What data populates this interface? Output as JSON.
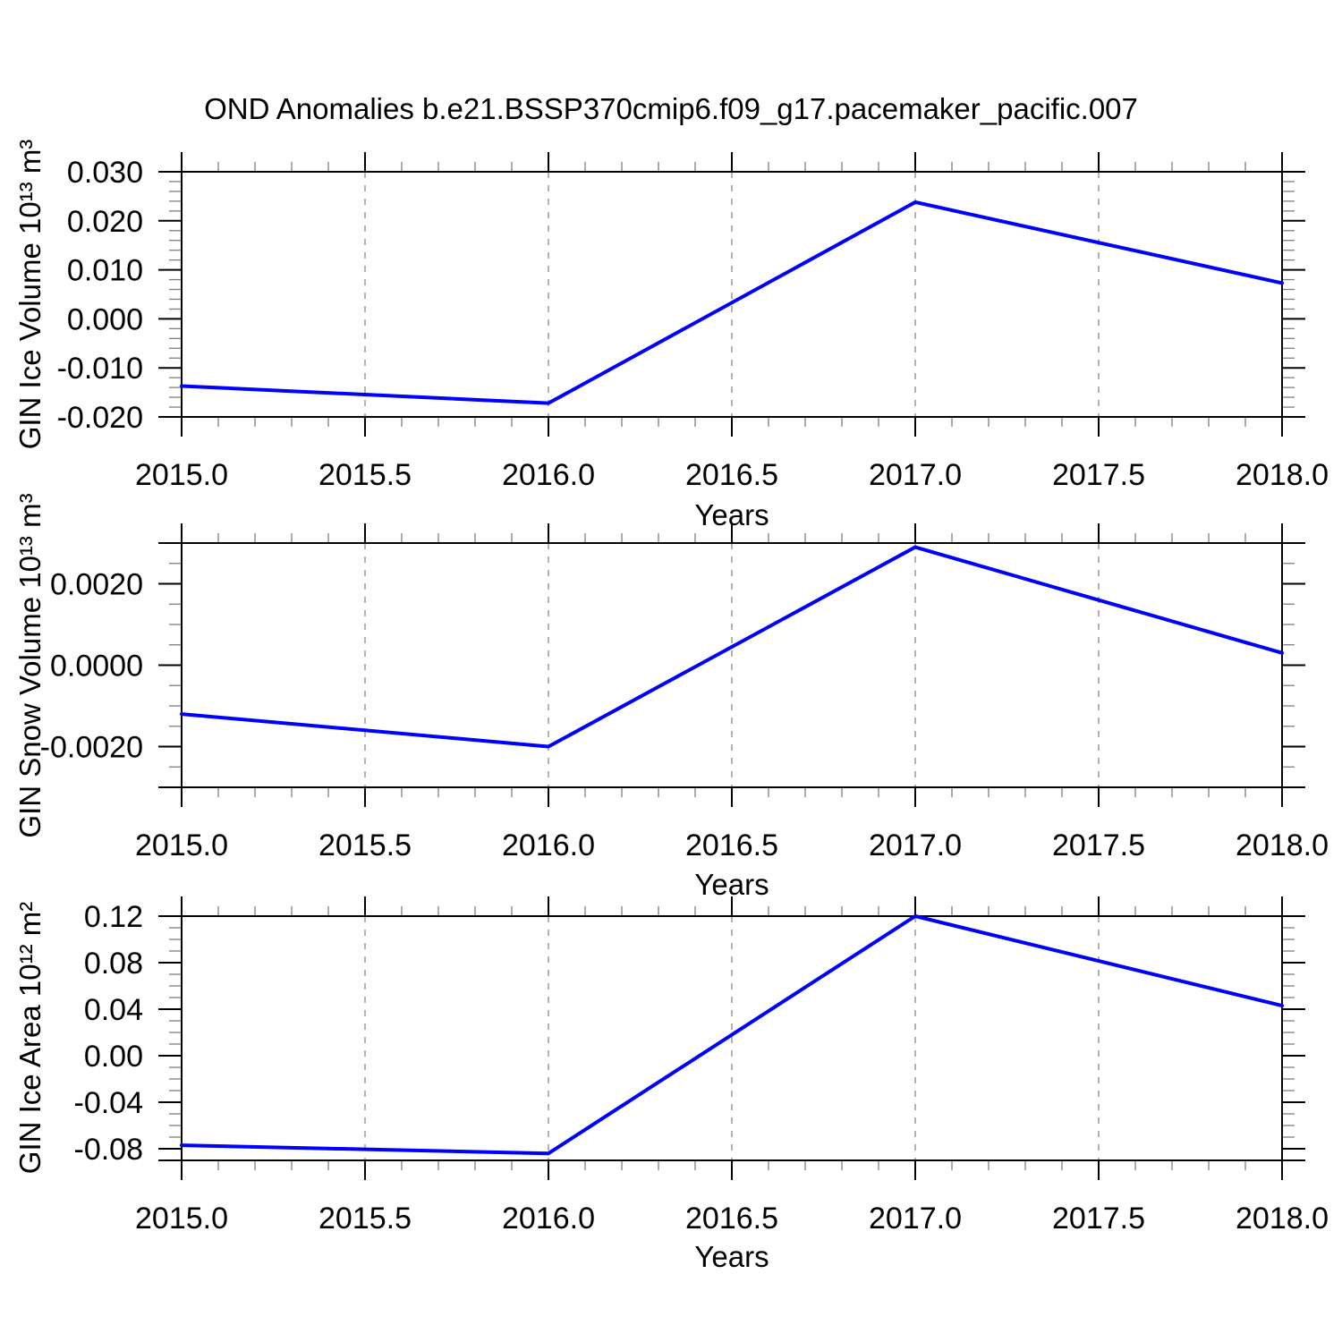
{
  "title": "OND Anomalies b.e21.BSSP370cmip6.f09_g17.pacemaker_pacific.007",
  "colors": {
    "line": "#0000ff",
    "frame": "#000000",
    "grid": "#999999",
    "background": "#ffffff"
  },
  "chart_data": [
    {
      "type": "line",
      "ylabel": "GIN Ice Volume 10¹³ m³",
      "xlabel": "Years",
      "x": [
        2015.0,
        2016.0,
        2017.0,
        2018.0
      ],
      "values": [
        -0.0137,
        -0.0172,
        0.0238,
        0.0073
      ],
      "xlim": [
        2015.0,
        2018.0
      ],
      "ylim": [
        -0.02,
        0.03
      ],
      "x_major": 0.5,
      "x_minor": 0.1,
      "x_tick_labels": [
        "2015.0",
        "2015.5",
        "2016.0",
        "2016.5",
        "2017.0",
        "2017.5",
        "2018.0"
      ],
      "y_ticks": [
        0.03,
        0.02,
        0.01,
        0.0,
        -0.01,
        -0.02
      ],
      "y_tick_labels": [
        "0.030",
        "0.020",
        "0.010",
        "0.000",
        "-0.010",
        "-0.020"
      ],
      "y_minor": 0.002,
      "grid_x": [
        2015.5,
        2016.0,
        2016.5,
        2017.0,
        2017.5
      ],
      "grid_on": true,
      "legend": "none"
    },
    {
      "type": "line",
      "ylabel": "GIN Snow Volume 10¹³ m³",
      "xlabel": "Years",
      "x": [
        2015.0,
        2016.0,
        2017.0,
        2018.0
      ],
      "values": [
        -0.0012,
        -0.002,
        0.0029,
        0.0003
      ],
      "xlim": [
        2015.0,
        2018.0
      ],
      "ylim": [
        -0.003,
        0.003
      ],
      "x_major": 0.5,
      "x_minor": 0.1,
      "x_tick_labels": [
        "2015.0",
        "2015.5",
        "2016.0",
        "2016.5",
        "2017.0",
        "2017.5",
        "2018.0"
      ],
      "y_ticks": [
        0.002,
        0.0,
        -0.002
      ],
      "y_tick_labels": [
        "0.0020",
        "0.0000",
        "-0.0020"
      ],
      "y_minor": 0.0005,
      "grid_x": [
        2015.5,
        2016.0,
        2016.5,
        2017.0,
        2017.5
      ],
      "grid_on": true,
      "legend": "none"
    },
    {
      "type": "line",
      "ylabel": "GIN Ice Area 10¹² m²",
      "xlabel": "Years",
      "x": [
        2015.0,
        2016.0,
        2017.0,
        2018.0
      ],
      "values": [
        -0.077,
        -0.084,
        0.12,
        0.043
      ],
      "xlim": [
        2015.0,
        2018.0
      ],
      "ylim": [
        -0.09,
        0.12
      ],
      "x_major": 0.5,
      "x_minor": 0.1,
      "x_tick_labels": [
        "2015.0",
        "2015.5",
        "2016.0",
        "2016.5",
        "2017.0",
        "2017.5",
        "2018.0"
      ],
      "y_ticks": [
        0.12,
        0.08,
        0.04,
        0.0,
        -0.04,
        -0.08
      ],
      "y_tick_labels": [
        "0.12",
        "0.08",
        "0.04",
        "0.00",
        "-0.04",
        "-0.08"
      ],
      "y_minor": 0.01,
      "grid_x": [
        2015.5,
        2016.0,
        2016.5,
        2017.0,
        2017.5
      ],
      "grid_on": true,
      "legend": "none"
    }
  ]
}
